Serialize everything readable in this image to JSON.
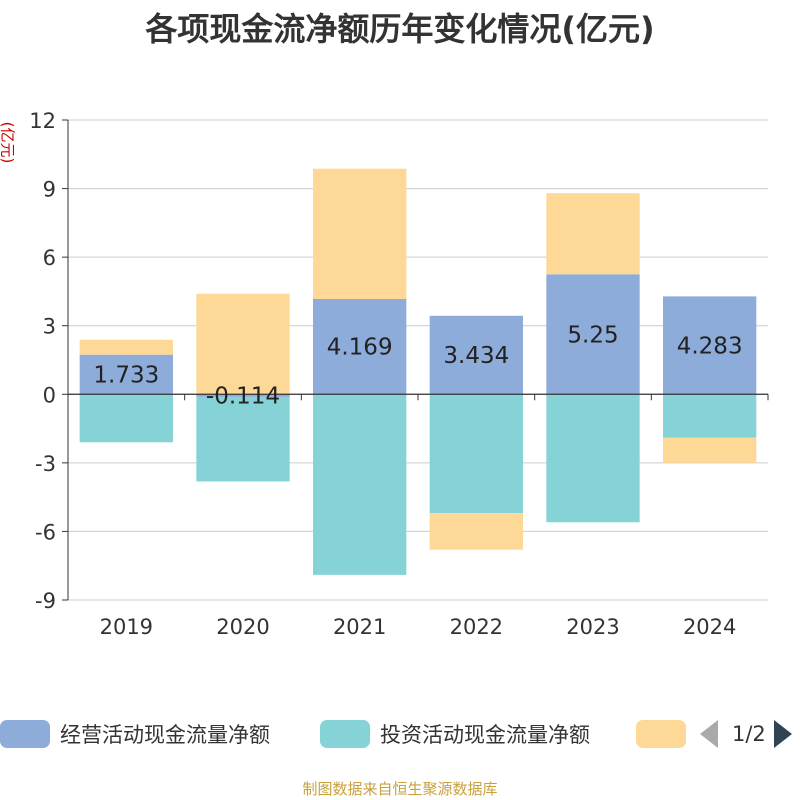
{
  "chart_data": {
    "type": "bar",
    "stacked": true,
    "title": "各项现金流净额历年变化情况(亿元)",
    "ylabel": "(亿元)",
    "categories": [
      "2019",
      "2020",
      "2021",
      "2022",
      "2023",
      "2024"
    ],
    "ylim": [
      -9,
      12
    ],
    "yticks": [
      -9,
      -6,
      -3,
      0,
      3,
      6,
      9,
      12
    ],
    "grid": true,
    "legend_position": "bottom",
    "series": [
      {
        "name": "经营活动现金流量净额",
        "color": "#8eacd9",
        "values": [
          1.733,
          -0.114,
          4.169,
          3.434,
          5.25,
          4.283
        ],
        "labels": [
          "1.733",
          "-0.114",
          "4.169",
          "3.434",
          "5.25",
          "4.283"
        ]
      },
      {
        "name": "投资活动现金流量净额",
        "color": "#85d3d6",
        "values": [
          -2.1,
          -3.7,
          -7.9,
          -5.2,
          -5.6,
          -1.9
        ],
        "labels": []
      },
      {
        "name": "",
        "color": "#fed896",
        "values": [
          0.65,
          4.4,
          5.7,
          -1.6,
          3.55,
          -1.1
        ],
        "labels": []
      }
    ]
  },
  "legend": {
    "page": "1/2"
  },
  "source": "制图数据来自恒生聚源数据库"
}
